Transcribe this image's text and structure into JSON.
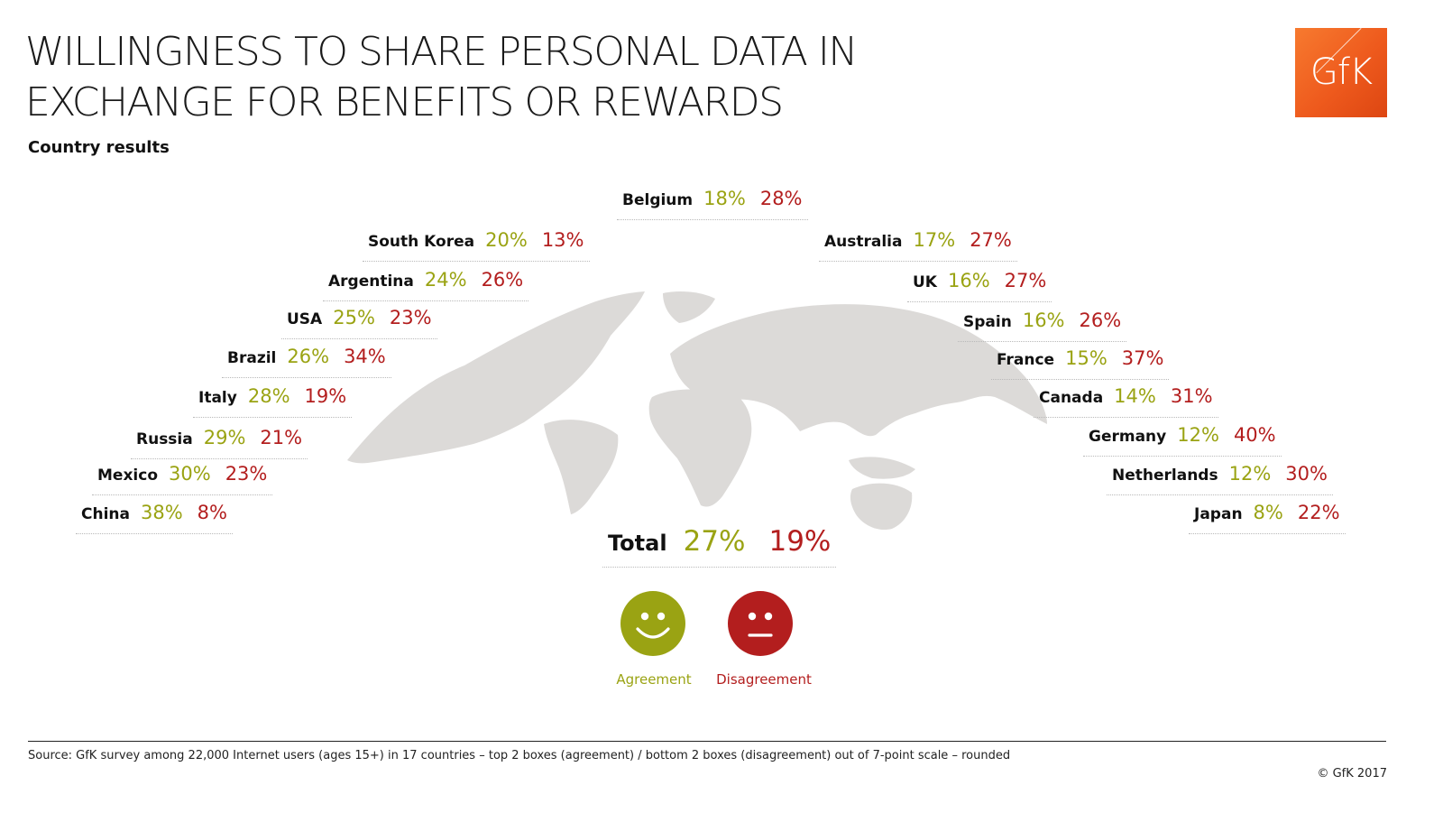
{
  "header": {
    "title_line1": "WILLINGNESS TO SHARE PERSONAL DATA  IN",
    "title_line2": "EXCHANGE FOR BENEFITS OR REWARDS",
    "subtitle": "Country results",
    "logo_text": "GfK"
  },
  "colors": {
    "agreement": "#9aa313",
    "disagreement": "#b31e1e",
    "map": "#dcdad8",
    "logo": "#ee5a1d"
  },
  "chart_data": {
    "type": "table",
    "title": "WILLINGNESS TO SHARE PERSONAL DATA  IN EXCHANGE FOR BENEFITS OR REWARDS",
    "subtitle": "Country results",
    "series": [
      {
        "name": "Agreement",
        "color": "#9aa313"
      },
      {
        "name": "Disagreement",
        "color": "#b31e1e"
      }
    ],
    "rows": [
      {
        "country": "Belgium",
        "agreement": "18%",
        "disagreement": "28%"
      },
      {
        "country": "South Korea",
        "agreement": "20%",
        "disagreement": "13%"
      },
      {
        "country": "Australia",
        "agreement": "17%",
        "disagreement": "27%"
      },
      {
        "country": "Argentina",
        "agreement": "24%",
        "disagreement": "26%"
      },
      {
        "country": "UK",
        "agreement": "16%",
        "disagreement": "27%"
      },
      {
        "country": "USA",
        "agreement": "25%",
        "disagreement": "23%"
      },
      {
        "country": "Spain",
        "agreement": "16%",
        "disagreement": "26%"
      },
      {
        "country": "Brazil",
        "agreement": "26%",
        "disagreement": "34%"
      },
      {
        "country": "France",
        "agreement": "15%",
        "disagreement": "37%"
      },
      {
        "country": "Italy",
        "agreement": "28%",
        "disagreement": "19%"
      },
      {
        "country": "Canada",
        "agreement": "14%",
        "disagreement": "31%"
      },
      {
        "country": "Russia",
        "agreement": "29%",
        "disagreement": "21%"
      },
      {
        "country": "Germany",
        "agreement": "12%",
        "disagreement": "40%"
      },
      {
        "country": "Mexico",
        "agreement": "30%",
        "disagreement": "23%"
      },
      {
        "country": "Netherlands",
        "agreement": "12%",
        "disagreement": "30%"
      },
      {
        "country": "China",
        "agreement": "38%",
        "disagreement": "8%"
      },
      {
        "country": "Japan",
        "agreement": "8%",
        "disagreement": "22%"
      }
    ],
    "total": {
      "label": "Total",
      "agreement": "27%",
      "disagreement": "19%"
    },
    "legend": {
      "agreement": "Agreement",
      "disagreement": "Disagreement"
    }
  },
  "footer": {
    "source": "Source: GfK survey among 22,000 Internet users (ages 15+) in 17 countries –  top 2 boxes (agreement) / bottom 2 boxes (disagreement) out of 7-point scale – rounded",
    "copyright": "© GfK 2017"
  }
}
